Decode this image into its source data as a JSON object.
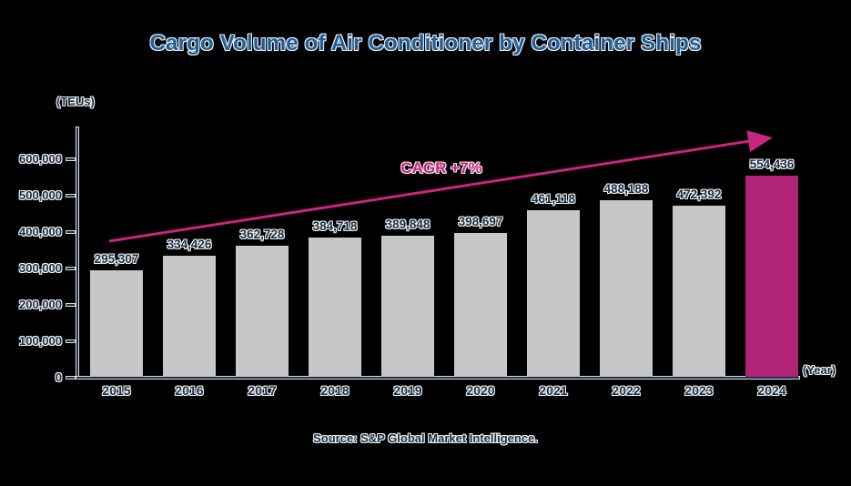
{
  "title": "Cargo Volume of Air Conditioner by Container Ships",
  "y_axis_unit": "(TEUs)",
  "x_axis_unit": "(Year)",
  "cagr_label": "CAGR +7%",
  "source": "Source: S&P Global Market Intelligence.",
  "colors": {
    "background": "#000000",
    "title_blue": "#1f5f96",
    "text_navy": "#1b3044",
    "bar_gray": "#c7c7c7",
    "bar_highlight_magenta": "#b12377",
    "trend_magenta": "#c9257e"
  },
  "chart_data": {
    "type": "bar",
    "title": "Cargo Volume of Air Conditioner by Container Ships",
    "xlabel": "(Year)",
    "ylabel": "(TEUs)",
    "categories": [
      "2015",
      "2016",
      "2017",
      "2018",
      "2019",
      "2020",
      "2021",
      "2022",
      "2023",
      "2024"
    ],
    "values": [
      295307,
      334426,
      362728,
      384718,
      389848,
      398697,
      461118,
      488188,
      472392,
      554436
    ],
    "value_labels": [
      "295,307",
      "334,426",
      "362,728",
      "384,718",
      "389,848",
      "398,697",
      "461,118",
      "488,188",
      "472,392",
      "554,436"
    ],
    "highlight_index": 9,
    "ylim": [
      0,
      600000
    ],
    "y_tick_values": [
      0,
      100000,
      200000,
      300000,
      400000,
      500000,
      600000
    ],
    "y_tick_labels": [
      "0",
      "100,000",
      "200,000",
      "300,000",
      "400,000",
      "500,000",
      "600,000"
    ],
    "grid": false,
    "legend": "none",
    "annotation": "CAGR +7%"
  }
}
